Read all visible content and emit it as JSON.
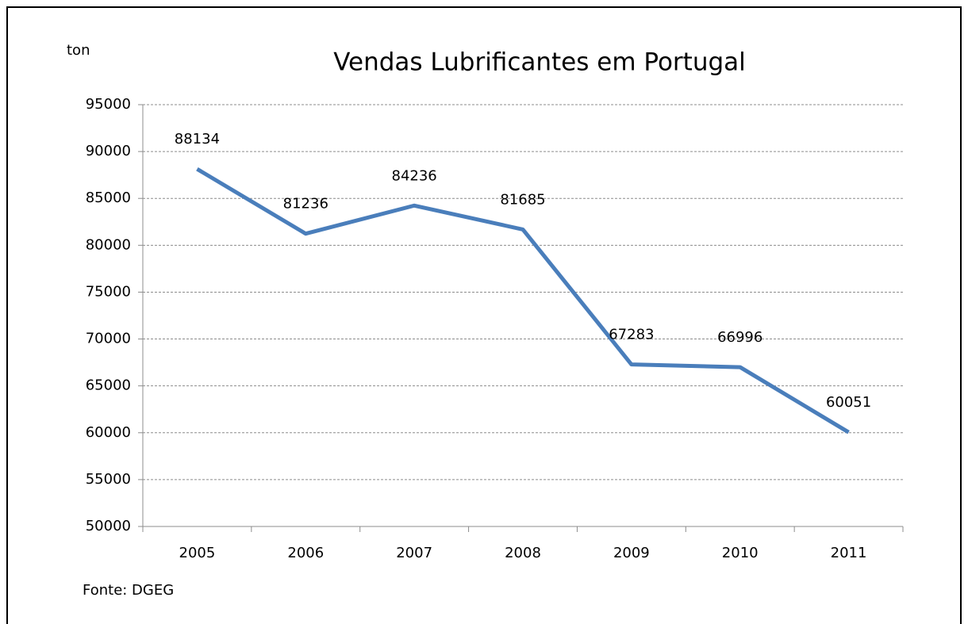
{
  "chart_data": {
    "type": "line",
    "title": "Vendas Lubrificantes em Portugal",
    "y_label": "ton",
    "source": "Fonte: DGEG",
    "categories": [
      "2005",
      "2006",
      "2007",
      "2008",
      "2009",
      "2010",
      "2011"
    ],
    "values": [
      88134,
      81236,
      84236,
      81685,
      67283,
      66996,
      60051
    ],
    "color": "#4a7ebb",
    "ylim": [
      50000,
      95000
    ],
    "yticks": [
      50000,
      55000,
      60000,
      65000,
      70000,
      75000,
      80000,
      85000,
      90000,
      95000
    ],
    "grid": true
  }
}
